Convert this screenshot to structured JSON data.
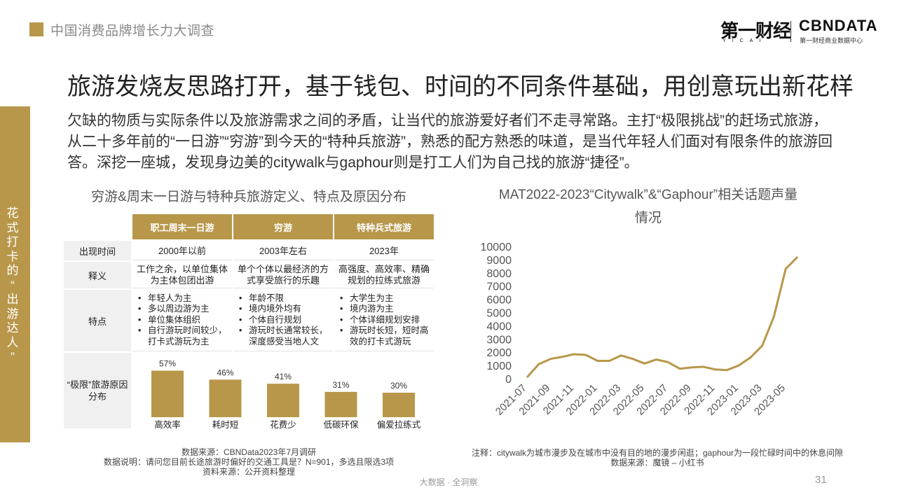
{
  "header": {
    "title": "中国消费品牌增长力大调查",
    "logo1_main": "第一财经",
    "logo1_sub": "YICAI",
    "logo2_main": "CBNDATA",
    "logo2_sub": "第一财经商业数据中心"
  },
  "headline": "旅游发烧友思路打开，基于钱包、时间的不同条件基础，用创意玩出新花样",
  "lead": "欠缺的物质与实际条件以及旅游需求之间的矛盾，让当代的旅游爱好者们不走寻常路。主打“极限挑战”的赶场式旅游，从二十多年前的“一日游”“穷游”到今天的“特种兵旅游”，熟悉的配方熟悉的味道，是当代年轻人们面对有限条件的旅游回答。深挖一座城，发现身边美的citywalk与gaphour则是打工人们为自己找的旅游“捷径”。",
  "sidebar": {
    "label": "花式打卡的“出游达人”"
  },
  "left_section": {
    "title": "穷游&周末一日游与特种兵旅游定义、特点及原因分布",
    "table": {
      "columns": [
        "职工周末一日游",
        "穷游",
        "特种兵式旅游"
      ],
      "rows": [
        {
          "label": "出现时间",
          "cells": [
            "2000年以前",
            "2003年左右",
            "2023年"
          ]
        },
        {
          "label": "释义",
          "cells": [
            "工作之余，以单位集体为主体包团出游",
            "单个个体以最经济的方式享受旅行的乐趣",
            "高强度、高效率、精确规划的拉练式旅游"
          ]
        }
      ],
      "features_label": "特点",
      "features": [
        [
          "年轻人为主",
          "多以周边游为主",
          "单位集体组织",
          "自行游玩时间较少，打卡式游玩为主"
        ],
        [
          "年龄不限",
          "境内境外均有",
          "个体自行规划",
          "游玩时长通常较长，深度感受当地人文"
        ],
        [
          "大学生为主",
          "境内游为主",
          "个体详细规划安排",
          "游玩时长短，短时高效的打卡式游玩"
        ]
      ],
      "reason_label": "“极限”旅游原因分布"
    }
  },
  "right_section": {
    "title": "MAT2022-2023“Citywalk”&“Gaphour”相关话题声量情况"
  },
  "chart_data": [
    {
      "type": "bar",
      "categories": [
        "高效率",
        "耗时短",
        "花费少",
        "低碳环保",
        "偏爱拉练式"
      ],
      "values": [
        57,
        46,
        41,
        31,
        30
      ],
      "value_labels": [
        "57%",
        "46%",
        "41%",
        "31%",
        "30%"
      ],
      "color": "#b8974a",
      "ylim": [
        0,
        60
      ]
    },
    {
      "type": "line",
      "x": [
        "2021-07",
        "2021-08",
        "2021-09",
        "2021-10",
        "2021-11",
        "2021-12",
        "2022-01",
        "2022-02",
        "2022-03",
        "2022-04",
        "2022-05",
        "2022-06",
        "2022-07",
        "2022-08",
        "2022-09",
        "2022-10",
        "2022-11",
        "2022-12",
        "2023-01",
        "2023-02",
        "2023-03",
        "2023-04",
        "2023-05",
        "2023-06"
      ],
      "x_tick_labels": [
        "2021-07",
        "2021-09",
        "2021-11",
        "2022-01",
        "2022-03",
        "2022-05",
        "2022-07",
        "2022-09",
        "2022-11",
        "2023-01",
        "2023-03",
        "2023-05"
      ],
      "series": [
        {
          "values": [
            100,
            1100,
            1500,
            1650,
            1850,
            1800,
            1350,
            1350,
            1750,
            1500,
            1150,
            1450,
            1250,
            750,
            850,
            900,
            700,
            650,
            1000,
            1600,
            2500,
            4700,
            8300,
            9200
          ]
        }
      ],
      "yticks": [
        0,
        1000,
        2000,
        3000,
        4000,
        5000,
        6000,
        7000,
        8000,
        9000,
        10000
      ],
      "ylim": [
        0,
        10000
      ],
      "color": "#b8974a",
      "grid": false
    }
  ],
  "footnotes": {
    "left_line1": "数据来源：CBNData2023年7月调研",
    "left_line2": "数据说明：请问您目前长途旅游时偏好的交通工具是？N=901，多选且限选3项",
    "left_line3": "资料来源：公开资料整理",
    "right_line1": "注释：citywalk为城市漫步及在城市中没有目的地的漫步闲逛；gaphour为一段忙碌时间中的休息间隙",
    "right_line2": "数据来源：魔镜 – 小红书"
  },
  "footer": {
    "text": "大数据 · 全洞察",
    "page": "31"
  }
}
